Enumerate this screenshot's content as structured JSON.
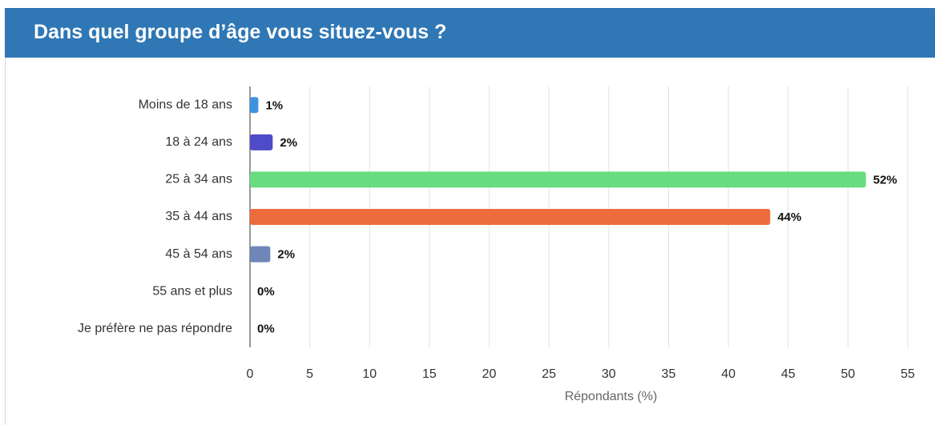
{
  "chart_data": {
    "type": "bar",
    "orientation": "horizontal",
    "title": "Dans quel groupe d’âge vous situez-vous ?",
    "categories": [
      "Moins de 18 ans",
      "18 à 24 ans",
      "25 à 34 ans",
      "35 à 44 ans",
      "45 à 54 ans",
      "55 ans et plus",
      "Je préfère ne pas répondre"
    ],
    "values": [
      0.7,
      1.9,
      51.5,
      43.5,
      1.7,
      0,
      0
    ],
    "value_labels": [
      "1%",
      "2%",
      "52%",
      "44%",
      "2%",
      "0%",
      "0%"
    ],
    "colors": [
      "#3d93e0",
      "#4f4bc8",
      "#67dd7f",
      "#ec6c3e",
      "#6f86b8",
      "#999999",
      "#999999"
    ],
    "xlim": [
      0,
      55
    ],
    "xticks": [
      0,
      5,
      10,
      15,
      20,
      25,
      30,
      35,
      40,
      45,
      50,
      55
    ],
    "xlabel": "Répondants (%)",
    "grid": true
  }
}
